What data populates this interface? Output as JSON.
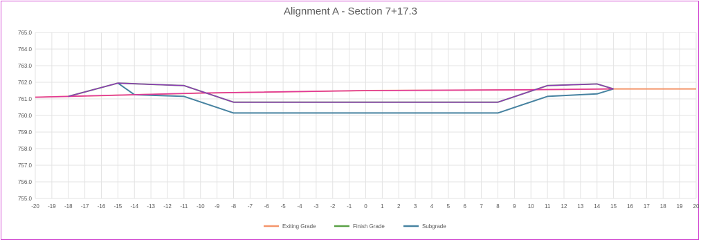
{
  "chart_data": {
    "type": "line",
    "title": "Alignment A - Section 7+17.3",
    "xlabel": "",
    "ylabel": "",
    "xlim": [
      -20,
      20
    ],
    "ylim": [
      755.0,
      765.0
    ],
    "x_ticks": [
      -20,
      -19,
      -18,
      -17,
      -16,
      -15,
      -14,
      -13,
      -12,
      -11,
      -10,
      -9,
      -8,
      -7,
      -6,
      -5,
      -4,
      -3,
      -2,
      -1,
      0,
      1,
      2,
      3,
      4,
      5,
      6,
      7,
      8,
      9,
      10,
      11,
      12,
      13,
      14,
      15,
      16,
      17,
      18,
      19,
      20
    ],
    "y_ticks": [
      "755.0",
      "756.0",
      "757.0",
      "758.0",
      "759.0",
      "760.0",
      "761.0",
      "762.0",
      "763.0",
      "764.0",
      "765.0"
    ],
    "grid": true,
    "legend_position": "bottom",
    "series": [
      {
        "name": "Exiting Grade",
        "color": "#f4956a",
        "points": [
          [
            -20,
            761.1
          ],
          [
            -18,
            761.15
          ],
          [
            -10,
            761.35
          ],
          [
            0,
            761.5
          ],
          [
            10,
            761.55
          ],
          [
            15,
            761.6
          ],
          [
            20,
            761.6
          ]
        ]
      },
      {
        "name": "Finish Grade",
        "color": "#5aa046",
        "points": [
          [
            -18,
            761.15
          ],
          [
            -15,
            761.95
          ],
          [
            -11,
            761.8
          ],
          [
            -8,
            760.8
          ],
          [
            8,
            760.8
          ],
          [
            11,
            761.8
          ],
          [
            14,
            761.9
          ],
          [
            15,
            761.6
          ]
        ]
      },
      {
        "name": "Subgrade",
        "color": "#4682a0",
        "points": [
          [
            -15,
            761.95
          ],
          [
            -14,
            761.25
          ],
          [
            -11,
            761.15
          ],
          [
            -8,
            760.15
          ],
          [
            8,
            760.15
          ],
          [
            11,
            761.15
          ],
          [
            14,
            761.3
          ],
          [
            15,
            761.6
          ]
        ]
      }
    ],
    "overlay_lines": [
      {
        "color": "#e0389a",
        "points": [
          [
            -20,
            761.1
          ],
          [
            -18,
            761.15
          ],
          [
            -10,
            761.35
          ],
          [
            0,
            761.5
          ],
          [
            10,
            761.55
          ],
          [
            15,
            761.6
          ]
        ]
      },
      {
        "color": "#8c3cb4",
        "points": [
          [
            -18,
            761.15
          ],
          [
            -15,
            761.95
          ],
          [
            -11,
            761.8
          ],
          [
            -8,
            760.8
          ],
          [
            8,
            760.8
          ],
          [
            11,
            761.8
          ],
          [
            14,
            761.9
          ],
          [
            15,
            761.6
          ]
        ]
      }
    ]
  }
}
